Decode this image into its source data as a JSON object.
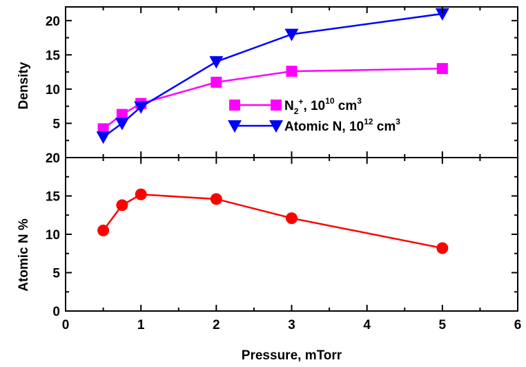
{
  "chart_data": [
    {
      "type": "line",
      "panel": "top",
      "ylabel": "Density",
      "ylim": [
        0,
        22
      ],
      "yticks": [
        5,
        10,
        15,
        20
      ],
      "xlim": [
        0,
        6
      ],
      "grid": false,
      "legend_position": "center-right",
      "series": [
        {
          "name": "N2+, 10^10 cm^3",
          "legend_base": "N",
          "legend_sub": "2",
          "legend_sup": "+",
          "legend_mid": ", 10",
          "legend_exp": "10",
          "legend_unit": " cm",
          "legend_unit_exp": "3",
          "marker": "square",
          "color": "#ff00ff",
          "x": [
            0.5,
            0.75,
            1,
            2,
            3,
            5
          ],
          "y": [
            4.2,
            6.3,
            7.9,
            11.0,
            12.6,
            13.0
          ]
        },
        {
          "name": "Atomic N, 10^12 cm^3",
          "legend_base": "Atomic N",
          "legend_mid": ", 10",
          "legend_exp": "12",
          "legend_unit": " cm",
          "legend_unit_exp": "3",
          "marker": "triangle-down",
          "color": "#0000ff",
          "x": [
            0.5,
            0.75,
            1,
            2,
            3,
            5
          ],
          "y": [
            3.0,
            5.0,
            7.4,
            14.0,
            18.0,
            21.0
          ]
        }
      ]
    },
    {
      "type": "line",
      "panel": "bottom",
      "ylabel": "Atomic N %",
      "ylim": [
        0,
        20
      ],
      "yticks": [
        0,
        5,
        10,
        15,
        20
      ],
      "xlim": [
        0,
        6
      ],
      "xticks": [
        0,
        1,
        2,
        3,
        4,
        5,
        6
      ],
      "xlabel": "Pressure, mTorr",
      "grid": false,
      "series": [
        {
          "marker": "circle",
          "color": "#ff0000",
          "x": [
            0.5,
            0.75,
            1,
            2,
            3,
            5
          ],
          "y": [
            10.5,
            13.8,
            15.2,
            14.6,
            12.1,
            8.2
          ]
        }
      ]
    }
  ]
}
